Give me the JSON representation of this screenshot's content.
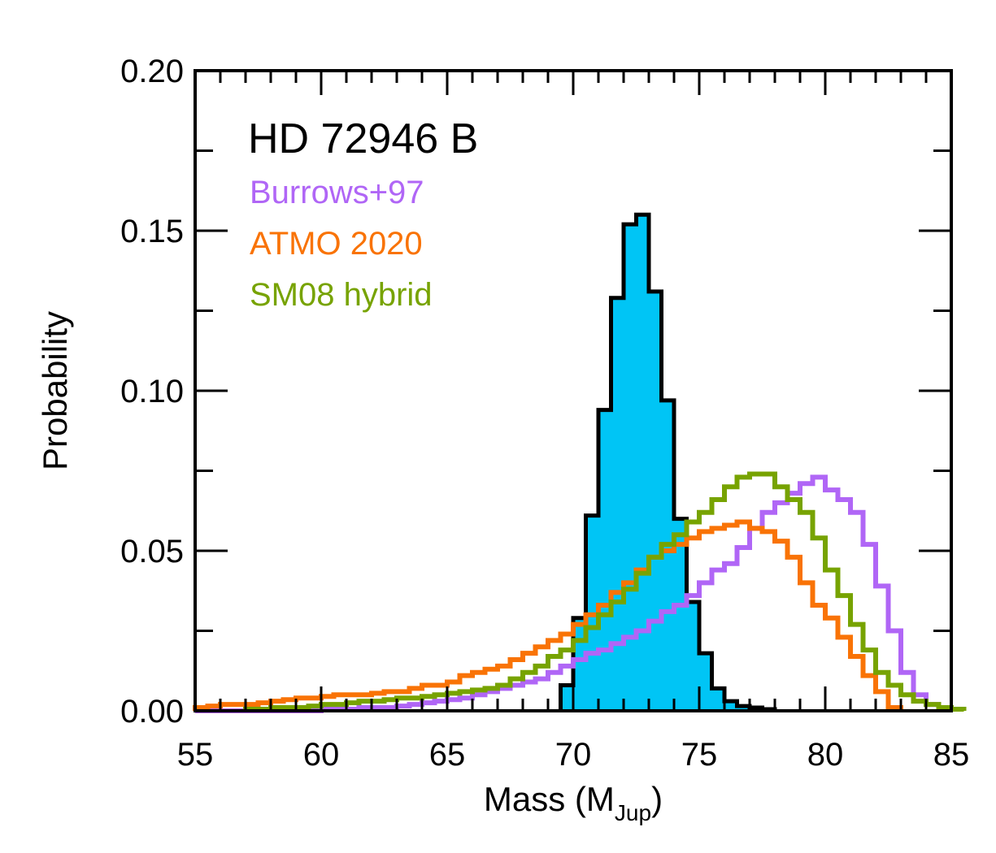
{
  "chart_data": {
    "type": "histogram",
    "title": "HD 72946 B",
    "xlabel": "Mass (M",
    "xlabel_sub": "Jup",
    "xlabel_close": ")",
    "ylabel": "Probability",
    "xlim": [
      55,
      85
    ],
    "ylim": [
      0,
      0.2
    ],
    "x_ticks": [
      55,
      60,
      65,
      70,
      75,
      80,
      85
    ],
    "y_ticks": [
      0,
      0.05,
      0.1,
      0.15,
      0.2
    ],
    "x_tick_labels": [
      "55",
      "60",
      "65",
      "70",
      "75",
      "80",
      "85"
    ],
    "y_tick_labels": [
      "0.00",
      "0.05",
      "0.10",
      "0.15",
      "0.20"
    ],
    "x_minor_step": 1,
    "y_minor_step": 0.025,
    "grid": false,
    "legend_position": "top-left",
    "bin_start": 55,
    "bin_width": 0.5,
    "series": [
      {
        "name": "",
        "color": "#000000",
        "fill": "#00c5f5",
        "filled": true,
        "x_start": 69.5,
        "values": [
          0.008,
          0.029,
          0.061,
          0.094,
          0.129,
          0.152,
          0.155,
          0.131,
          0.097,
          0.06,
          0.034,
          0.018,
          0.007,
          0.003,
          0.0015,
          0.001,
          0.0005
        ]
      },
      {
        "name": "Burrows+97",
        "color": "#b066f6",
        "filled": false,
        "x_start": 55,
        "values": [
          0.0,
          0.0,
          0.0,
          0.0,
          0.0,
          0.0,
          0.0,
          0.0,
          0.0,
          0.0,
          0.0005,
          0.0005,
          0.0005,
          0.001,
          0.001,
          0.001,
          0.0015,
          0.002,
          0.0025,
          0.003,
          0.0035,
          0.004,
          0.005,
          0.006,
          0.007,
          0.008,
          0.009,
          0.01,
          0.012,
          0.014,
          0.016,
          0.018,
          0.019,
          0.021,
          0.023,
          0.025,
          0.028,
          0.031,
          0.033,
          0.036,
          0.04,
          0.044,
          0.046,
          0.051,
          0.057,
          0.062,
          0.065,
          0.068,
          0.071,
          0.073,
          0.069,
          0.066,
          0.062,
          0.052,
          0.039,
          0.025,
          0.012,
          0.005,
          0.002,
          0.001
        ]
      },
      {
        "name": "ATMO 2020",
        "color": "#f97306",
        "filled": false,
        "x_start": 55,
        "values": [
          0.001,
          0.0015,
          0.002,
          0.002,
          0.002,
          0.0025,
          0.003,
          0.0035,
          0.004,
          0.004,
          0.0045,
          0.005,
          0.005,
          0.005,
          0.0055,
          0.006,
          0.006,
          0.007,
          0.008,
          0.008,
          0.009,
          0.011,
          0.012,
          0.013,
          0.014,
          0.016,
          0.018,
          0.02,
          0.022,
          0.024,
          0.027,
          0.03,
          0.033,
          0.037,
          0.04,
          0.044,
          0.048,
          0.05,
          0.052,
          0.054,
          0.056,
          0.057,
          0.058,
          0.059,
          0.057,
          0.056,
          0.053,
          0.048,
          0.04,
          0.033,
          0.029,
          0.023,
          0.017,
          0.011,
          0.006,
          0.001
        ]
      },
      {
        "name": "SM08 hybrid",
        "color": "#77a300",
        "filled": false,
        "x_start": 57,
        "values": [
          0.0005,
          0.0005,
          0.001,
          0.001,
          0.001,
          0.0015,
          0.002,
          0.002,
          0.0025,
          0.003,
          0.003,
          0.0035,
          0.004,
          0.004,
          0.0045,
          0.005,
          0.0055,
          0.006,
          0.0065,
          0.007,
          0.008,
          0.01,
          0.012,
          0.014,
          0.017,
          0.019,
          0.022,
          0.026,
          0.03,
          0.034,
          0.038,
          0.043,
          0.048,
          0.052,
          0.055,
          0.059,
          0.062,
          0.066,
          0.07,
          0.073,
          0.074,
          0.074,
          0.07,
          0.066,
          0.062,
          0.054,
          0.044,
          0.036,
          0.027,
          0.019,
          0.012,
          0.008,
          0.005,
          0.003,
          0.002,
          0.001,
          0.0005
        ]
      }
    ]
  }
}
